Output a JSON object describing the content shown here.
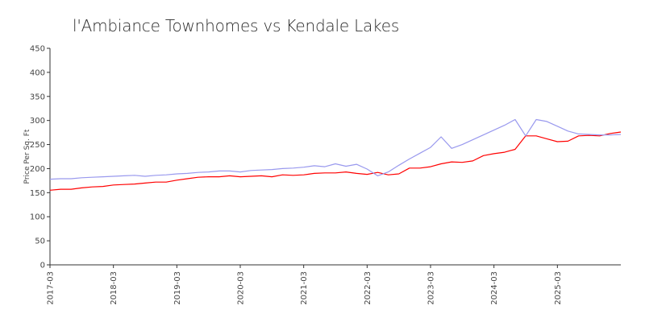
{
  "chart_data": {
    "type": "line",
    "title": "l'Ambiance Townhomes vs Kendale Lakes",
    "xlabel": "",
    "ylabel": "Price Per Sq. Ft",
    "ylim": [
      0,
      450
    ],
    "xlim": [
      "2017-03",
      "2026-03"
    ],
    "grid": false,
    "legend": "none",
    "y_ticks": [
      "0",
      "50",
      "100",
      "150",
      "200",
      "250",
      "300",
      "350",
      "400",
      "450"
    ],
    "x_ticks": [
      "2017-03",
      "2018-03",
      "2019-03",
      "2020-03",
      "2021-03",
      "2022-03",
      "2023-03",
      "2024-03",
      "2025-03"
    ],
    "series": [
      {
        "color": "#ff0000",
        "points": [
          [
            "2017-03",
            155
          ],
          [
            "2017-05",
            157
          ],
          [
            "2017-07",
            157
          ],
          [
            "2017-09",
            160
          ],
          [
            "2017-11",
            162
          ],
          [
            "2018-01",
            163
          ],
          [
            "2018-03",
            166
          ],
          [
            "2018-05",
            167
          ],
          [
            "2018-07",
            168
          ],
          [
            "2018-09",
            170
          ],
          [
            "2018-11",
            172
          ],
          [
            "2019-01",
            172
          ],
          [
            "2019-03",
            176
          ],
          [
            "2019-05",
            179
          ],
          [
            "2019-07",
            182
          ],
          [
            "2019-09",
            183
          ],
          [
            "2019-11",
            183
          ],
          [
            "2020-01",
            185
          ],
          [
            "2020-03",
            183
          ],
          [
            "2020-05",
            184
          ],
          [
            "2020-07",
            185
          ],
          [
            "2020-09",
            183
          ],
          [
            "2020-11",
            187
          ],
          [
            "2021-01",
            186
          ],
          [
            "2021-03",
            187
          ],
          [
            "2021-05",
            190
          ],
          [
            "2021-07",
            191
          ],
          [
            "2021-09",
            191
          ],
          [
            "2021-11",
            193
          ],
          [
            "2022-01",
            190
          ],
          [
            "2022-03",
            188
          ],
          [
            "2022-05",
            192
          ],
          [
            "2022-07",
            187
          ],
          [
            "2022-09",
            189
          ],
          [
            "2022-11",
            201
          ],
          [
            "2023-01",
            201
          ],
          [
            "2023-03",
            204
          ],
          [
            "2023-05",
            210
          ],
          [
            "2023-07",
            214
          ],
          [
            "2023-09",
            213
          ],
          [
            "2023-11",
            216
          ],
          [
            "2024-01",
            227
          ],
          [
            "2024-03",
            231
          ],
          [
            "2024-05",
            234
          ],
          [
            "2024-07",
            240
          ],
          [
            "2024-09",
            268
          ],
          [
            "2024-11",
            268
          ],
          [
            "2025-01",
            262
          ],
          [
            "2025-03",
            256
          ],
          [
            "2025-05",
            257
          ],
          [
            "2025-07",
            268
          ],
          [
            "2025-09",
            269
          ],
          [
            "2025-11",
            268
          ],
          [
            "2026-01",
            273
          ],
          [
            "2026-03",
            276
          ]
        ]
      },
      {
        "color": "#9999ee",
        "points": [
          [
            "2017-03",
            178
          ],
          [
            "2017-05",
            179
          ],
          [
            "2017-07",
            179
          ],
          [
            "2017-09",
            181
          ],
          [
            "2017-11",
            182
          ],
          [
            "2018-01",
            183
          ],
          [
            "2018-03",
            184
          ],
          [
            "2018-05",
            185
          ],
          [
            "2018-07",
            186
          ],
          [
            "2018-09",
            184
          ],
          [
            "2018-11",
            186
          ],
          [
            "2019-01",
            187
          ],
          [
            "2019-03",
            189
          ],
          [
            "2019-05",
            190
          ],
          [
            "2019-07",
            192
          ],
          [
            "2019-09",
            193
          ],
          [
            "2019-11",
            195
          ],
          [
            "2020-01",
            195
          ],
          [
            "2020-03",
            193
          ],
          [
            "2020-05",
            196
          ],
          [
            "2020-07",
            197
          ],
          [
            "2020-09",
            198
          ],
          [
            "2020-11",
            200
          ],
          [
            "2021-01",
            201
          ],
          [
            "2021-03",
            203
          ],
          [
            "2021-05",
            206
          ],
          [
            "2021-07",
            204
          ],
          [
            "2021-09",
            210
          ],
          [
            "2021-11",
            205
          ],
          [
            "2022-01",
            209
          ],
          [
            "2022-03",
            199
          ],
          [
            "2022-05",
            185
          ],
          [
            "2022-07",
            193
          ],
          [
            "2022-09",
            207
          ],
          [
            "2022-11",
            220
          ],
          [
            "2023-01",
            232
          ],
          [
            "2023-03",
            244
          ],
          [
            "2023-05",
            266
          ],
          [
            "2023-07",
            242
          ],
          [
            "2023-09",
            250
          ],
          [
            "2023-11",
            260
          ],
          [
            "2024-01",
            270
          ],
          [
            "2024-03",
            280
          ],
          [
            "2024-05",
            290
          ],
          [
            "2024-07",
            302
          ],
          [
            "2024-09",
            268
          ],
          [
            "2024-11",
            302
          ],
          [
            "2025-01",
            298
          ],
          [
            "2025-03",
            288
          ],
          [
            "2025-05",
            278
          ],
          [
            "2025-07",
            272
          ],
          [
            "2025-09",
            271
          ],
          [
            "2025-11",
            270
          ],
          [
            "2026-01",
            270
          ],
          [
            "2026-03",
            271
          ]
        ]
      }
    ]
  }
}
